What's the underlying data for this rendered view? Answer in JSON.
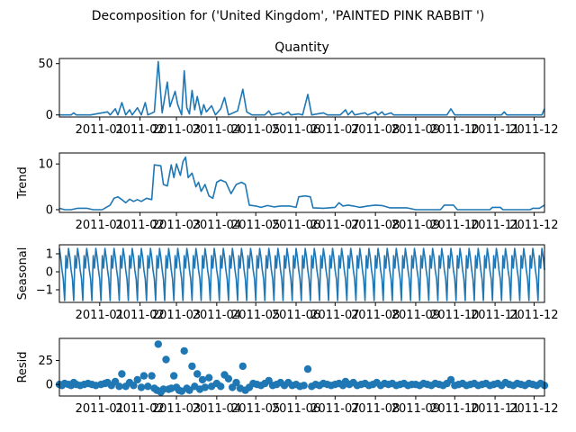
{
  "figure": {
    "suptitle": "Decomposition for ('United Kingdom', 'PAINTED PINK RABBIT ')"
  },
  "colors": {
    "series": "#1f77b4",
    "axes": "#000000",
    "background": "#ffffff"
  },
  "chart_data": [
    {
      "type": "line",
      "title": "Quantity",
      "ylabel": "",
      "x_range": [
        "2010-12-01",
        "2011-12-09"
      ],
      "x_ticks": [
        "2011-01",
        "2011-02",
        "2011-03",
        "2011-04",
        "2011-05",
        "2011-06",
        "2011-07",
        "2011-08",
        "2011-09",
        "2011-10",
        "2011-11",
        "2011-12"
      ],
      "ylim": [
        -2,
        55
      ],
      "y_ticks": [
        0,
        50
      ],
      "points": [
        [
          "2010-12-01",
          0
        ],
        [
          "2010-12-10",
          0
        ],
        [
          "2010-12-12",
          2
        ],
        [
          "2010-12-14",
          0
        ],
        [
          "2010-12-25",
          0
        ],
        [
          "2011-01-07",
          3
        ],
        [
          "2011-01-09",
          0
        ],
        [
          "2011-01-13",
          6
        ],
        [
          "2011-01-15",
          0
        ],
        [
          "2011-01-18",
          12
        ],
        [
          "2011-01-21",
          0
        ],
        [
          "2011-01-24",
          5
        ],
        [
          "2011-01-26",
          0
        ],
        [
          "2011-01-30",
          7
        ],
        [
          "2011-02-02",
          0
        ],
        [
          "2011-02-05",
          12
        ],
        [
          "2011-02-07",
          0
        ],
        [
          "2011-02-12",
          3
        ],
        [
          "2011-02-15",
          52
        ],
        [
          "2011-02-18",
          2
        ],
        [
          "2011-02-22",
          32
        ],
        [
          "2011-02-24",
          8
        ],
        [
          "2011-02-28",
          23
        ],
        [
          "2011-03-02",
          10
        ],
        [
          "2011-03-05",
          0
        ],
        [
          "2011-03-07",
          43
        ],
        [
          "2011-03-09",
          7
        ],
        [
          "2011-03-11",
          1
        ],
        [
          "2011-03-13",
          24
        ],
        [
          "2011-03-15",
          5
        ],
        [
          "2011-03-17",
          18
        ],
        [
          "2011-03-20",
          0
        ],
        [
          "2011-03-22",
          10
        ],
        [
          "2011-03-24",
          3
        ],
        [
          "2011-03-28",
          9
        ],
        [
          "2011-03-31",
          0
        ],
        [
          "2011-04-04",
          6
        ],
        [
          "2011-04-07",
          17
        ],
        [
          "2011-04-10",
          0
        ],
        [
          "2011-04-17",
          4
        ],
        [
          "2011-04-21",
          25
        ],
        [
          "2011-04-24",
          3
        ],
        [
          "2011-04-28",
          0
        ],
        [
          "2011-05-08",
          0
        ],
        [
          "2011-05-11",
          4
        ],
        [
          "2011-05-13",
          0
        ],
        [
          "2011-05-20",
          2
        ],
        [
          "2011-05-22",
          0
        ],
        [
          "2011-05-26",
          3
        ],
        [
          "2011-05-28",
          0
        ],
        [
          "2011-06-03",
          1
        ],
        [
          "2011-06-06",
          0
        ],
        [
          "2011-06-10",
          20
        ],
        [
          "2011-06-13",
          0
        ],
        [
          "2011-06-22",
          2
        ],
        [
          "2011-06-25",
          0
        ],
        [
          "2011-07-05",
          0
        ],
        [
          "2011-07-09",
          5
        ],
        [
          "2011-07-11",
          0
        ],
        [
          "2011-07-14",
          4
        ],
        [
          "2011-07-16",
          0
        ],
        [
          "2011-07-24",
          2
        ],
        [
          "2011-07-26",
          0
        ],
        [
          "2011-08-01",
          3
        ],
        [
          "2011-08-03",
          0
        ],
        [
          "2011-08-06",
          3
        ],
        [
          "2011-08-08",
          0
        ],
        [
          "2011-08-13",
          2
        ],
        [
          "2011-08-15",
          0
        ],
        [
          "2011-09-25",
          0
        ],
        [
          "2011-09-28",
          6
        ],
        [
          "2011-10-01",
          0
        ],
        [
          "2011-11-06",
          0
        ],
        [
          "2011-11-08",
          3
        ],
        [
          "2011-11-10",
          0
        ],
        [
          "2011-12-07",
          0
        ],
        [
          "2011-12-09",
          6
        ]
      ]
    },
    {
      "type": "line",
      "title": "",
      "ylabel": "Trend",
      "x_range": [
        "2010-12-01",
        "2011-12-09"
      ],
      "x_ticks": [
        "2011-01",
        "2011-02",
        "2011-03",
        "2011-04",
        "2011-05",
        "2011-06",
        "2011-07",
        "2011-08",
        "2011-09",
        "2011-10",
        "2011-11",
        "2011-12"
      ],
      "ylim": [
        -0.6,
        12.4
      ],
      "y_ticks": [
        0,
        10
      ],
      "points": [
        [
          "2010-12-01",
          0.3
        ],
        [
          "2010-12-05",
          0.0
        ],
        [
          "2010-12-10",
          0.0
        ],
        [
          "2010-12-15",
          0.3
        ],
        [
          "2010-12-22",
          0.3
        ],
        [
          "2010-12-27",
          0.0
        ],
        [
          "2011-01-03",
          0.0
        ],
        [
          "2011-01-06",
          0.5
        ],
        [
          "2011-01-09",
          1.0
        ],
        [
          "2011-01-12",
          2.5
        ],
        [
          "2011-01-15",
          2.8
        ],
        [
          "2011-01-18",
          2.2
        ],
        [
          "2011-01-21",
          1.5
        ],
        [
          "2011-01-24",
          2.3
        ],
        [
          "2011-01-27",
          1.8
        ],
        [
          "2011-01-30",
          2.2
        ],
        [
          "2011-02-02",
          1.8
        ],
        [
          "2011-02-06",
          2.5
        ],
        [
          "2011-02-10",
          2.2
        ],
        [
          "2011-02-12",
          9.8
        ],
        [
          "2011-02-17",
          9.6
        ],
        [
          "2011-02-19",
          5.5
        ],
        [
          "2011-02-22",
          5.2
        ],
        [
          "2011-02-25",
          9.8
        ],
        [
          "2011-02-27",
          7.0
        ],
        [
          "2011-03-01",
          10.0
        ],
        [
          "2011-03-04",
          7.5
        ],
        [
          "2011-03-06",
          10.5
        ],
        [
          "2011-03-08",
          11.5
        ],
        [
          "2011-03-10",
          7.0
        ],
        [
          "2011-03-13",
          8.0
        ],
        [
          "2011-03-16",
          5.0
        ],
        [
          "2011-03-18",
          6.0
        ],
        [
          "2011-03-20",
          4.0
        ],
        [
          "2011-03-23",
          5.5
        ],
        [
          "2011-03-26",
          3.0
        ],
        [
          "2011-03-29",
          2.5
        ],
        [
          "2011-04-01",
          6.0
        ],
        [
          "2011-04-04",
          6.5
        ],
        [
          "2011-04-08",
          6.0
        ],
        [
          "2011-04-12",
          3.5
        ],
        [
          "2011-04-16",
          5.5
        ],
        [
          "2011-04-20",
          6.0
        ],
        [
          "2011-04-23",
          5.5
        ],
        [
          "2011-04-26",
          1.0
        ],
        [
          "2011-05-01",
          0.8
        ],
        [
          "2011-05-05",
          0.5
        ],
        [
          "2011-05-10",
          0.9
        ],
        [
          "2011-05-15",
          0.6
        ],
        [
          "2011-05-20",
          0.8
        ],
        [
          "2011-05-27",
          0.8
        ],
        [
          "2011-06-01",
          0.5
        ],
        [
          "2011-06-03",
          2.8
        ],
        [
          "2011-06-08",
          3.0
        ],
        [
          "2011-06-12",
          2.8
        ],
        [
          "2011-06-14",
          0.4
        ],
        [
          "2011-06-22",
          0.3
        ],
        [
          "2011-07-01",
          0.5
        ],
        [
          "2011-07-04",
          1.5
        ],
        [
          "2011-07-07",
          0.8
        ],
        [
          "2011-07-11",
          1.0
        ],
        [
          "2011-07-15",
          0.8
        ],
        [
          "2011-07-20",
          0.5
        ],
        [
          "2011-07-26",
          0.8
        ],
        [
          "2011-08-01",
          1.0
        ],
        [
          "2011-08-06",
          0.9
        ],
        [
          "2011-08-12",
          0.4
        ],
        [
          "2011-08-18",
          0.4
        ],
        [
          "2011-08-25",
          0.4
        ],
        [
          "2011-09-01",
          0.0
        ],
        [
          "2011-09-10",
          0.0
        ],
        [
          "2011-09-20",
          0.0
        ],
        [
          "2011-09-23",
          1.0
        ],
        [
          "2011-09-30",
          1.0
        ],
        [
          "2011-10-03",
          0.0
        ],
        [
          "2011-10-15",
          0.0
        ],
        [
          "2011-10-28",
          0.0
        ],
        [
          "2011-10-30",
          0.5
        ],
        [
          "2011-11-05",
          0.5
        ],
        [
          "2011-11-07",
          0.0
        ],
        [
          "2011-11-20",
          0.0
        ],
        [
          "2011-11-28",
          0.0
        ],
        [
          "2011-11-30",
          0.3
        ],
        [
          "2011-12-05",
          0.3
        ],
        [
          "2011-12-09",
          1.0
        ]
      ]
    },
    {
      "type": "line",
      "title": "",
      "ylabel": "Seasonal",
      "x_range": [
        "2010-12-01",
        "2011-12-09"
      ],
      "x_ticks": [
        "2011-01",
        "2011-02",
        "2011-03",
        "2011-04",
        "2011-05",
        "2011-06",
        "2011-07",
        "2011-08",
        "2011-09",
        "2011-10",
        "2011-11",
        "2011-12"
      ],
      "ylim": [
        -1.7,
        1.5
      ],
      "y_ticks": [
        -1,
        0,
        1
      ],
      "period_days": 7,
      "pattern": [
        1.3,
        0.8,
        0.1,
        -0.4,
        -1.6,
        0.9,
        0.2
      ]
    },
    {
      "type": "scatter",
      "title": "",
      "ylabel": "Resid",
      "x_range": [
        "2010-12-01",
        "2011-12-09"
      ],
      "x_ticks": [
        "2011-01",
        "2011-02",
        "2011-03",
        "2011-04",
        "2011-05",
        "2011-06",
        "2011-07",
        "2011-08",
        "2011-09",
        "2011-10",
        "2011-11",
        "2011-12"
      ],
      "ylim": [
        -12,
        48
      ],
      "y_ticks": [
        0,
        25
      ],
      "points": [
        [
          "2010-12-01",
          0
        ],
        [
          "2010-12-03",
          -1
        ],
        [
          "2010-12-05",
          1
        ],
        [
          "2010-12-08",
          0
        ],
        [
          "2010-12-10",
          -1
        ],
        [
          "2010-12-12",
          2
        ],
        [
          "2010-12-14",
          0
        ],
        [
          "2010-12-17",
          -1
        ],
        [
          "2010-12-20",
          0
        ],
        [
          "2010-12-23",
          1
        ],
        [
          "2010-12-26",
          0
        ],
        [
          "2010-12-29",
          -1
        ],
        [
          "2011-01-02",
          0
        ],
        [
          "2011-01-05",
          1
        ],
        [
          "2011-01-07",
          2
        ],
        [
          "2011-01-10",
          -1
        ],
        [
          "2011-01-13",
          3
        ],
        [
          "2011-01-16",
          -2
        ],
        [
          "2011-01-18",
          11
        ],
        [
          "2011-01-21",
          -2
        ],
        [
          "2011-01-24",
          2
        ],
        [
          "2011-01-27",
          -1
        ],
        [
          "2011-01-30",
          5
        ],
        [
          "2011-02-02",
          -3
        ],
        [
          "2011-02-04",
          9
        ],
        [
          "2011-02-07",
          -2
        ],
        [
          "2011-02-10",
          9
        ],
        [
          "2011-02-12",
          -4
        ],
        [
          "2011-02-14",
          -6
        ],
        [
          "2011-02-15",
          42
        ],
        [
          "2011-02-17",
          -8
        ],
        [
          "2011-02-19",
          -5
        ],
        [
          "2011-02-21",
          26
        ],
        [
          "2011-02-23",
          -5
        ],
        [
          "2011-02-25",
          -4
        ],
        [
          "2011-02-27",
          9
        ],
        [
          "2011-03-01",
          -3
        ],
        [
          "2011-03-03",
          -6
        ],
        [
          "2011-03-05",
          -7
        ],
        [
          "2011-03-07",
          35
        ],
        [
          "2011-03-09",
          -4
        ],
        [
          "2011-03-11",
          -6
        ],
        [
          "2011-03-13",
          19
        ],
        [
          "2011-03-15",
          -2
        ],
        [
          "2011-03-17",
          11
        ],
        [
          "2011-03-19",
          -5
        ],
        [
          "2011-03-21",
          5
        ],
        [
          "2011-03-23",
          -3
        ],
        [
          "2011-03-26",
          7
        ],
        [
          "2011-03-28",
          -2
        ],
        [
          "2011-04-01",
          1
        ],
        [
          "2011-04-04",
          -2
        ],
        [
          "2011-04-07",
          10
        ],
        [
          "2011-04-10",
          6
        ],
        [
          "2011-04-13",
          -3
        ],
        [
          "2011-04-16",
          2
        ],
        [
          "2011-04-19",
          -4
        ],
        [
          "2011-04-21",
          19
        ],
        [
          "2011-04-23",
          -6
        ],
        [
          "2011-04-26",
          -3
        ],
        [
          "2011-04-29",
          1
        ],
        [
          "2011-05-02",
          0
        ],
        [
          "2011-05-05",
          -1
        ],
        [
          "2011-05-08",
          1
        ],
        [
          "2011-05-11",
          4
        ],
        [
          "2011-05-14",
          -1
        ],
        [
          "2011-05-17",
          0
        ],
        [
          "2011-05-20",
          2
        ],
        [
          "2011-05-23",
          -1
        ],
        [
          "2011-05-26",
          2
        ],
        [
          "2011-05-29",
          -1
        ],
        [
          "2011-06-01",
          0
        ],
        [
          "2011-06-04",
          -2
        ],
        [
          "2011-06-07",
          -1
        ],
        [
          "2011-06-10",
          16
        ],
        [
          "2011-06-13",
          -2
        ],
        [
          "2011-06-16",
          0
        ],
        [
          "2011-06-19",
          -1
        ],
        [
          "2011-06-22",
          1
        ],
        [
          "2011-06-25",
          0
        ],
        [
          "2011-06-28",
          -1
        ],
        [
          "2011-07-01",
          0
        ],
        [
          "2011-07-04",
          1
        ],
        [
          "2011-07-07",
          -1
        ],
        [
          "2011-07-09",
          3
        ],
        [
          "2011-07-12",
          0
        ],
        [
          "2011-07-15",
          2
        ],
        [
          "2011-07-18",
          -1
        ],
        [
          "2011-07-21",
          0
        ],
        [
          "2011-07-24",
          1
        ],
        [
          "2011-07-27",
          -1
        ],
        [
          "2011-07-30",
          0
        ],
        [
          "2011-08-02",
          2
        ],
        [
          "2011-08-05",
          -1
        ],
        [
          "2011-08-08",
          1
        ],
        [
          "2011-08-11",
          0
        ],
        [
          "2011-08-14",
          1
        ],
        [
          "2011-08-17",
          -1
        ],
        [
          "2011-08-20",
          0
        ],
        [
          "2011-08-23",
          1
        ],
        [
          "2011-08-26",
          -1
        ],
        [
          "2011-08-29",
          0
        ],
        [
          "2011-09-01",
          0
        ],
        [
          "2011-09-04",
          -1
        ],
        [
          "2011-09-07",
          1
        ],
        [
          "2011-09-10",
          0
        ],
        [
          "2011-09-13",
          -1
        ],
        [
          "2011-09-16",
          1
        ],
        [
          "2011-09-19",
          0
        ],
        [
          "2011-09-22",
          -1
        ],
        [
          "2011-09-25",
          1
        ],
        [
          "2011-09-28",
          5
        ],
        [
          "2011-10-01",
          -1
        ],
        [
          "2011-10-04",
          0
        ],
        [
          "2011-10-07",
          1
        ],
        [
          "2011-10-10",
          -1
        ],
        [
          "2011-10-13",
          0
        ],
        [
          "2011-10-16",
          1
        ],
        [
          "2011-10-19",
          -1
        ],
        [
          "2011-10-22",
          0
        ],
        [
          "2011-10-25",
          1
        ],
        [
          "2011-10-28",
          -1
        ],
        [
          "2011-10-31",
          0
        ],
        [
          "2011-11-03",
          1
        ],
        [
          "2011-11-06",
          -1
        ],
        [
          "2011-11-09",
          2
        ],
        [
          "2011-11-12",
          0
        ],
        [
          "2011-11-15",
          -1
        ],
        [
          "2011-11-18",
          1
        ],
        [
          "2011-11-21",
          0
        ],
        [
          "2011-11-24",
          -1
        ],
        [
          "2011-11-27",
          1
        ],
        [
          "2011-11-30",
          0
        ],
        [
          "2011-12-03",
          -1
        ],
        [
          "2011-12-06",
          1
        ],
        [
          "2011-12-09",
          -1
        ]
      ]
    }
  ]
}
